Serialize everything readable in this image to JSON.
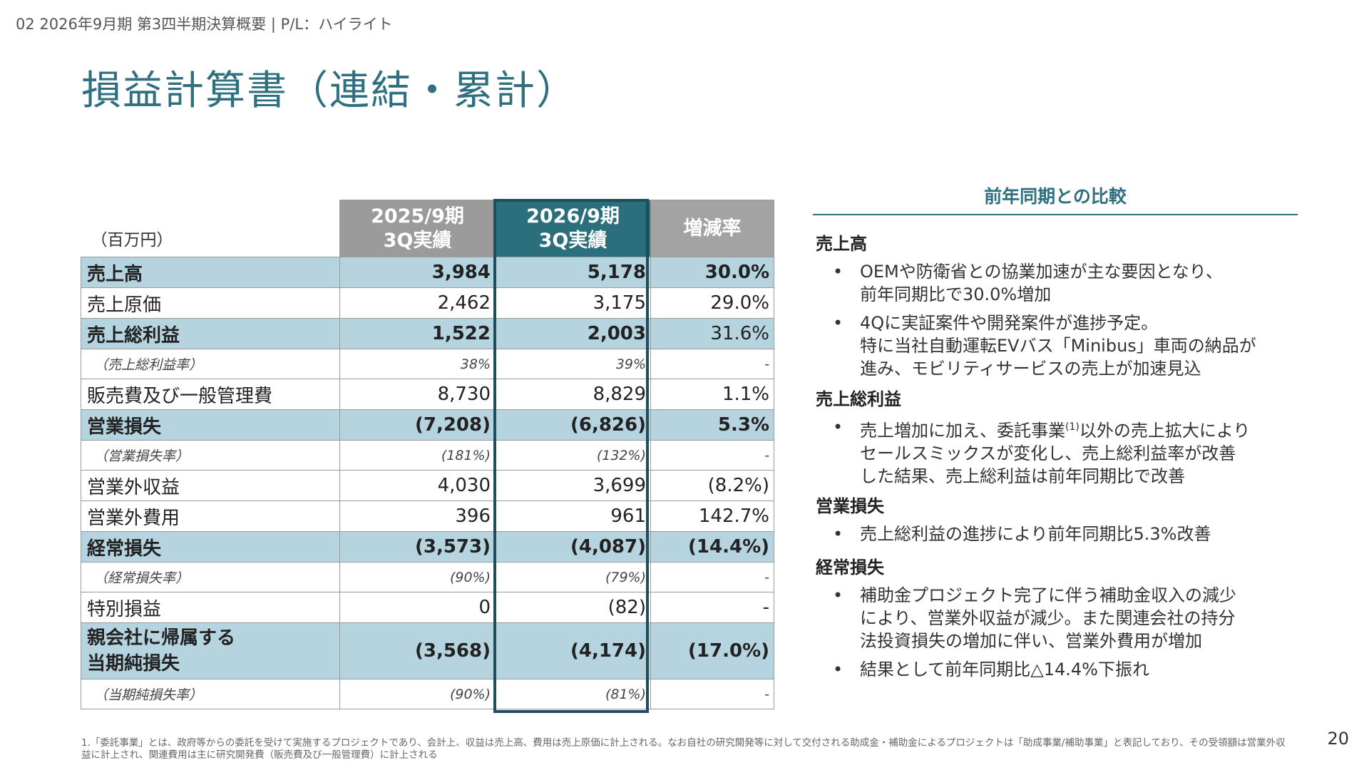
{
  "header": {
    "breadcrumb": "02 2026年9月期 第3四半期決算概要 | P/L：ハイライト",
    "title": "損益計算書（連結・累計）"
  },
  "table": {
    "unit": "（百万円）",
    "col_prev_1": "2025/9期",
    "col_prev_2": "3Q実績",
    "col_cur_1": "2026/9期",
    "col_cur_2": "3Q実績",
    "col_rate": "増減率",
    "rows": [
      {
        "label": "売上高",
        "prev": "3,984",
        "cur": "5,178",
        "rate": "30.0%"
      },
      {
        "label": "売上原価",
        "prev": "2,462",
        "cur": "3,175",
        "rate": "29.0%"
      },
      {
        "label": "売上総利益",
        "prev": "1,522",
        "cur": "2,003",
        "rate": "31.6%"
      },
      {
        "label": "（売上総利益率）",
        "prev": "38%",
        "cur": "39%",
        "rate": "-"
      },
      {
        "label": "販売費及び一般管理費",
        "prev": "8,730",
        "cur": "8,829",
        "rate": "1.1%"
      },
      {
        "label": "営業損失",
        "prev": "(7,208)",
        "cur": "(6,826)",
        "rate": "5.3%"
      },
      {
        "label": "（営業損失率）",
        "prev": "(181%)",
        "cur": "(132%)",
        "rate": "-"
      },
      {
        "label": "営業外収益",
        "prev": "4,030",
        "cur": "3,699",
        "rate": "(8.2%)"
      },
      {
        "label": "営業外費用",
        "prev": "396",
        "cur": "961",
        "rate": "142.7%"
      },
      {
        "label": "経常損失",
        "prev": "(3,573)",
        "cur": "(4,087)",
        "rate": "(14.4%)"
      },
      {
        "label": "（経常損失率）",
        "prev": "(90%)",
        "cur": "(79%)",
        "rate": "-"
      },
      {
        "label": "特別損益",
        "prev": "0",
        "cur": "(82)",
        "rate": "-"
      },
      {
        "label_1": "親会社に帰属する",
        "label_2": "当期純損失",
        "prev": "(3,568)",
        "cur": "(4,174)",
        "rate": "(17.0%)"
      },
      {
        "label": "（当期純損失率）",
        "prev": "(90%)",
        "cur": "(81%)",
        "rate": "-"
      }
    ]
  },
  "comparison": {
    "heading": "前年同期との比較",
    "bullet_mark": "•",
    "sections": [
      {
        "title": "売上高",
        "bullets": [
          [
            "OEMや防衛省との協業加速が主な要因となり、",
            "前年同期比で30.0%増加"
          ],
          [
            "4Qに実証案件や開発案件が進捗予定。",
            "特に当社自動運転EVバス「Minibus」車両の納品が",
            "進み、モビリティサービスの売上が加速見込"
          ]
        ]
      },
      {
        "title": "売上総利益",
        "bullets": [
          {
            "l1_pre": "売上増加に加え、委託事業",
            "l1_note": "(1)",
            "l1_post": "以外の売上拡大により",
            "l2": "セールスミックスが変化し、売上総利益率が改善",
            "l3": "した結果、売上総利益は前年同期比で改善"
          }
        ]
      },
      {
        "title": "営業損失",
        "bullets": [
          [
            "売上総利益の進捗により前年同期比5.3%改善"
          ]
        ]
      },
      {
        "title": "経常損失",
        "bullets": [
          [
            "補助金プロジェクト完了に伴う補助金収入の減少",
            "により、営業外収益が減少。また関連会社の持分",
            "法投資損失の増加に伴い、営業外費用が増加"
          ],
          [
            "結果として前年同期比△14.4%下振れ"
          ]
        ]
      }
    ]
  },
  "footnote": "1.「委託事業」とは、政府等からの委託を受けて実施するプロジェクトであり、会計上、収益は売上高、費用は売上原価に計上される。なお自社の研究開発等に対して交付される助成金・補助金によるプロジェクトは「助成事業/補助事業」と表記しており、その受領額は営業外収益に計上され、関連費用は主に研究開発費（販売費及び一般管理費）に計上される",
  "page_number": "20",
  "colors": {
    "accent": "#2e7080",
    "highlight_row": "#b5d4df",
    "current_col_header": "#2b6e7c",
    "current_col_frame": "#1e4e5c"
  }
}
